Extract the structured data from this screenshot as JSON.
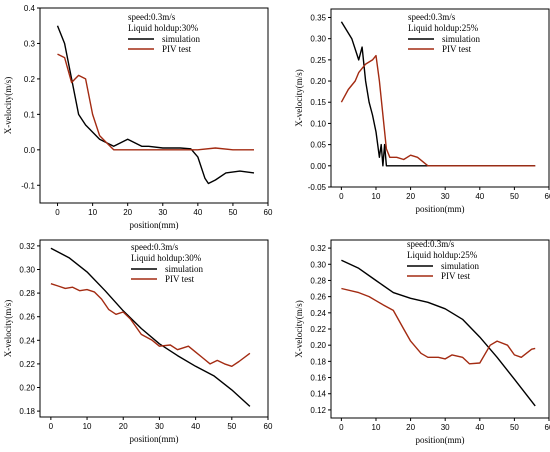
{
  "chart_data": [
    {
      "type": "line",
      "xlabel": "position(mm)",
      "ylabel": "X-velocity(m/s)",
      "xlim": [
        -5,
        60
      ],
      "ylim": [
        -0.15,
        0.4
      ],
      "xticks": [
        "0",
        "10",
        "20",
        "30",
        "40",
        "50",
        "60"
      ],
      "yticks": [
        "-0.1",
        "0.0",
        "0.1",
        "0.2",
        "0.3",
        "0.4"
      ],
      "legend": {
        "lines": [
          "speed:0.3m/s",
          "Liquid holdup:30%"
        ],
        "placement": "top-right"
      },
      "series": [
        {
          "name": "simulation",
          "color": "#000000",
          "x": [
            0,
            2,
            4,
            6,
            8,
            10,
            12,
            14,
            16,
            18,
            20,
            22,
            24,
            26,
            30,
            35,
            38,
            40,
            42,
            43,
            45,
            48,
            52,
            56
          ],
          "y": [
            0.35,
            0.3,
            0.2,
            0.1,
            0.07,
            0.05,
            0.03,
            0.02,
            0.01,
            0.02,
            0.03,
            0.02,
            0.01,
            0.01,
            0.005,
            0.005,
            0.003,
            -0.02,
            -0.08,
            -0.095,
            -0.085,
            -0.065,
            -0.06,
            -0.065
          ]
        },
        {
          "name": "PIV test",
          "color": "#a32b12",
          "x": [
            0,
            2,
            4,
            5,
            6,
            8,
            10,
            12,
            14,
            16,
            18,
            20,
            25,
            30,
            35,
            40,
            45,
            50,
            56
          ],
          "y": [
            0.27,
            0.26,
            0.19,
            0.2,
            0.21,
            0.2,
            0.1,
            0.04,
            0.02,
            0.0,
            0.0,
            0.0,
            0.0,
            0.0,
            0.0,
            0.0,
            0.005,
            0.0,
            0.0
          ]
        }
      ]
    },
    {
      "type": "line",
      "xlabel": "position(mm)",
      "ylabel": "X-velocity(m/s)",
      "xlim": [
        -3,
        60
      ],
      "ylim": [
        -0.05,
        0.37
      ],
      "xticks": [
        "0",
        "10",
        "20",
        "30",
        "40",
        "50",
        "60"
      ],
      "yticks": [
        "-0.05",
        "0.00",
        "0.05",
        "0.10",
        "0.15",
        "0.20",
        "0.25",
        "0.30",
        "0.35"
      ],
      "legend": {
        "lines": [
          "speed:0.3m/s",
          "Liquid holdup:25%"
        ],
        "placement": "top-right"
      },
      "series": [
        {
          "name": "simulation",
          "color": "#000000",
          "x": [
            0,
            3,
            5,
            6,
            7,
            8,
            9,
            10,
            11,
            11.5,
            12,
            12.5,
            13,
            14,
            16,
            20,
            30,
            40,
            50,
            56
          ],
          "y": [
            0.34,
            0.3,
            0.25,
            0.28,
            0.2,
            0.15,
            0.12,
            0.08,
            0.02,
            0.05,
            0.0,
            0.05,
            0.0,
            0.0,
            0.0,
            0.0,
            0.0,
            0.0,
            0.0,
            0.0
          ]
        },
        {
          "name": "PIV test",
          "color": "#a32b12",
          "x": [
            0,
            2,
            4,
            5,
            7,
            9,
            10,
            11,
            12,
            13,
            14,
            16,
            18,
            20,
            22,
            25,
            30,
            40,
            50,
            56
          ],
          "y": [
            0.15,
            0.18,
            0.2,
            0.22,
            0.24,
            0.25,
            0.26,
            0.2,
            0.12,
            0.04,
            0.02,
            0.02,
            0.015,
            0.025,
            0.02,
            0.0,
            0.0,
            0.0,
            0.0,
            0.0
          ]
        }
      ]
    },
    {
      "type": "line",
      "xlabel": "position(mm)",
      "ylabel": "X-velocity(m/s)",
      "xlim": [
        -3,
        60
      ],
      "ylim": [
        0.175,
        0.325
      ],
      "xticks": [
        "0",
        "10",
        "20",
        "30",
        "40",
        "50",
        "60"
      ],
      "yticks": [
        "0.18",
        "0.20",
        "0.22",
        "0.24",
        "0.26",
        "0.28",
        "0.30",
        "0.32"
      ],
      "legend": {
        "lines": [
          "speed:0.3m/s",
          "Liquid holdup:30%"
        ],
        "placement": "top-right"
      },
      "series": [
        {
          "name": "simulation",
          "color": "#000000",
          "x": [
            0,
            5,
            10,
            15,
            20,
            25,
            30,
            35,
            40,
            45,
            50,
            55
          ],
          "y": [
            0.318,
            0.31,
            0.298,
            0.282,
            0.265,
            0.25,
            0.237,
            0.227,
            0.218,
            0.21,
            0.198,
            0.184
          ]
        },
        {
          "name": "PIV test",
          "color": "#a32b12",
          "x": [
            0,
            2,
            4,
            6,
            8,
            10,
            12,
            14,
            16,
            18,
            20,
            22,
            25,
            28,
            30,
            33,
            35,
            38,
            40,
            42,
            44,
            46,
            48,
            50,
            52,
            55
          ],
          "y": [
            0.288,
            0.286,
            0.284,
            0.285,
            0.282,
            0.283,
            0.281,
            0.275,
            0.266,
            0.262,
            0.264,
            0.258,
            0.245,
            0.24,
            0.235,
            0.236,
            0.232,
            0.235,
            0.23,
            0.225,
            0.22,
            0.223,
            0.22,
            0.218,
            0.222,
            0.229
          ]
        }
      ]
    },
    {
      "type": "line",
      "xlabel": "position(mm)",
      "ylabel": "X-velocity(m/s)",
      "xlim": [
        -3,
        60
      ],
      "ylim": [
        0.11,
        0.33
      ],
      "xticks": [
        "0",
        "10",
        "20",
        "30",
        "40",
        "50",
        "60"
      ],
      "yticks": [
        "0.12",
        "0.14",
        "0.16",
        "0.18",
        "0.20",
        "0.22",
        "0.24",
        "0.26",
        "0.28",
        "0.30",
        "0.32"
      ],
      "legend": {
        "lines": [
          "speed:0.3m/s",
          "Liquid holdup:25%"
        ],
        "placement": "top-right"
      },
      "series": [
        {
          "name": "simulation",
          "color": "#000000",
          "x": [
            0,
            5,
            10,
            15,
            20,
            25,
            30,
            35,
            40,
            45,
            50,
            56
          ],
          "y": [
            0.305,
            0.295,
            0.28,
            0.265,
            0.258,
            0.253,
            0.245,
            0.232,
            0.21,
            0.185,
            0.158,
            0.125
          ]
        },
        {
          "name": "PIV test",
          "color": "#a32b12",
          "x": [
            0,
            5,
            8,
            10,
            12,
            15,
            18,
            20,
            23,
            25,
            28,
            30,
            32,
            35,
            37,
            40,
            43,
            45,
            48,
            50,
            52,
            55,
            56
          ],
          "y": [
            0.27,
            0.265,
            0.26,
            0.255,
            0.25,
            0.243,
            0.22,
            0.205,
            0.19,
            0.185,
            0.185,
            0.183,
            0.188,
            0.185,
            0.177,
            0.178,
            0.2,
            0.205,
            0.2,
            0.188,
            0.185,
            0.195,
            0.196
          ]
        }
      ]
    }
  ]
}
